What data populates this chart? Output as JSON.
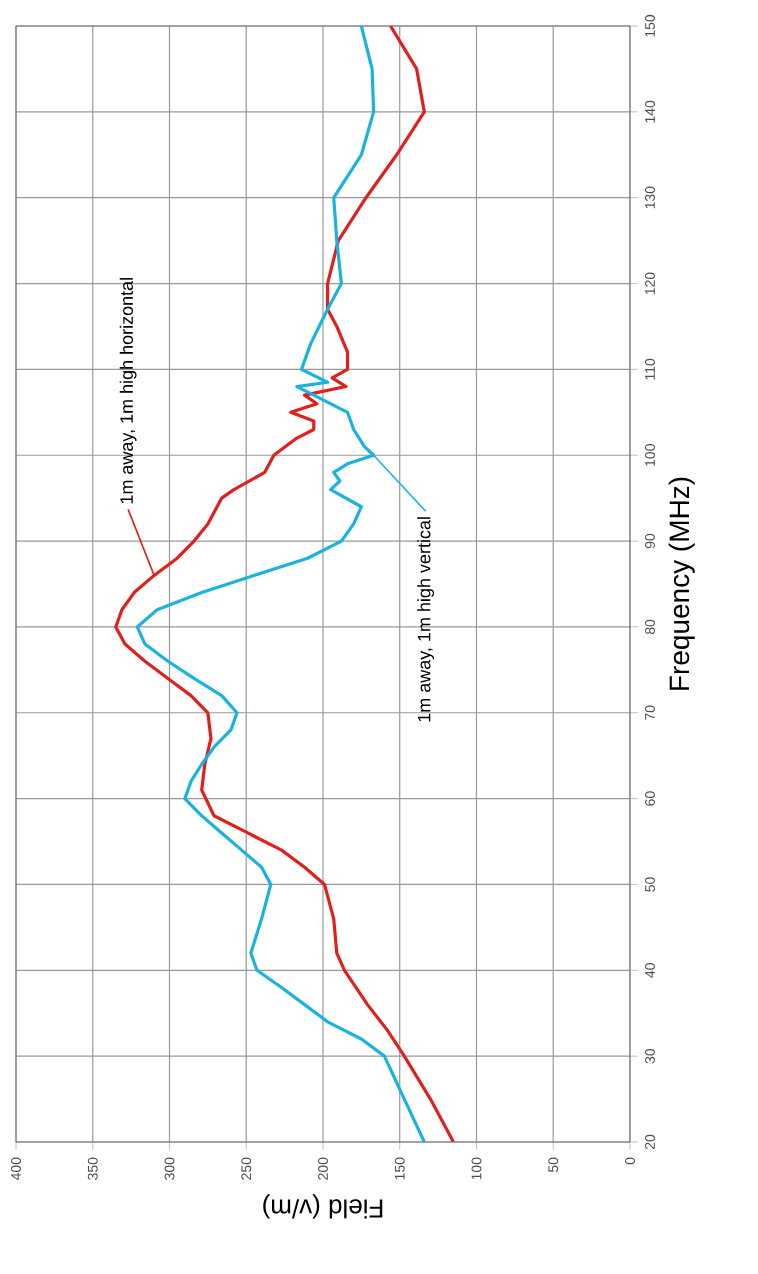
{
  "chart_data": {
    "type": "line",
    "xlabel": "Field (v/m)",
    "ylabel": "Frequency (MHz)",
    "xlim": [
      400,
      0
    ],
    "ylim": [
      20,
      150
    ],
    "xticks": [
      400,
      350,
      300,
      250,
      200,
      150,
      100,
      50,
      0
    ],
    "yticks": [
      20,
      30,
      40,
      50,
      60,
      70,
      80,
      90,
      100,
      110,
      120,
      130,
      140,
      150
    ],
    "grid": true,
    "series": [
      {
        "color": "#e0201c",
        "values": [
          20,
          25,
          30,
          33,
          36,
          40,
          42,
          46,
          50,
          52,
          54,
          56,
          58,
          61,
          64,
          67,
          70,
          72,
          74,
          76,
          78,
          80,
          82,
          84,
          86,
          88,
          90,
          92,
          94,
          95,
          96,
          98,
          100,
          102,
          103,
          104,
          105,
          106,
          107,
          108,
          109,
          110,
          112,
          115,
          117,
          120,
          125,
          130,
          135,
          140,
          145,
          150
        ],
        "x": [
          115,
          130,
          147,
          158,
          171,
          186,
          191,
          193,
          199,
          212,
          227,
          249,
          271,
          279,
          277,
          273,
          275,
          286,
          301,
          316,
          329,
          335,
          331,
          323,
          310,
          295,
          284,
          275,
          269,
          266,
          258,
          238,
          232,
          217,
          206,
          206,
          221,
          204,
          212,
          185,
          194,
          184,
          184,
          191,
          197,
          197,
          190,
          172,
          152,
          134,
          139,
          156
        ]
      },
      {
        "color": "#1ab3e0",
        "values": [
          20,
          25,
          30,
          32,
          34,
          36,
          38,
          40,
          42,
          46,
          50,
          52,
          54,
          56,
          58,
          60,
          62,
          64,
          66,
          68,
          70,
          72,
          74,
          76,
          78,
          80,
          82,
          84,
          86,
          88,
          90,
          92,
          94,
          96,
          97,
          98,
          99,
          100,
          101,
          103,
          105,
          107,
          108,
          108.5,
          110,
          113,
          117,
          120,
          125,
          130,
          135,
          140,
          145,
          150
        ],
        "x": [
          134,
          147,
          160,
          175,
          197,
          212,
          227,
          243,
          247,
          240,
          234,
          240,
          253,
          266,
          279,
          290,
          286,
          279,
          271,
          260,
          256,
          266,
          284,
          301,
          316,
          321,
          308,
          279,
          245,
          210,
          188,
          180,
          175,
          195,
          189,
          193,
          184,
          167,
          173,
          180,
          184,
          206,
          217,
          197,
          214,
          208,
          197,
          188,
          191,
          193,
          175,
          167,
          168,
          175
        ]
      }
    ],
    "annotations": [
      {
        "text": "1m away, 1m high horizontal",
        "x": 310,
        "y": 86
      },
      {
        "text": "1m away, 1m high vertical",
        "x": 167,
        "y": 100
      }
    ]
  }
}
